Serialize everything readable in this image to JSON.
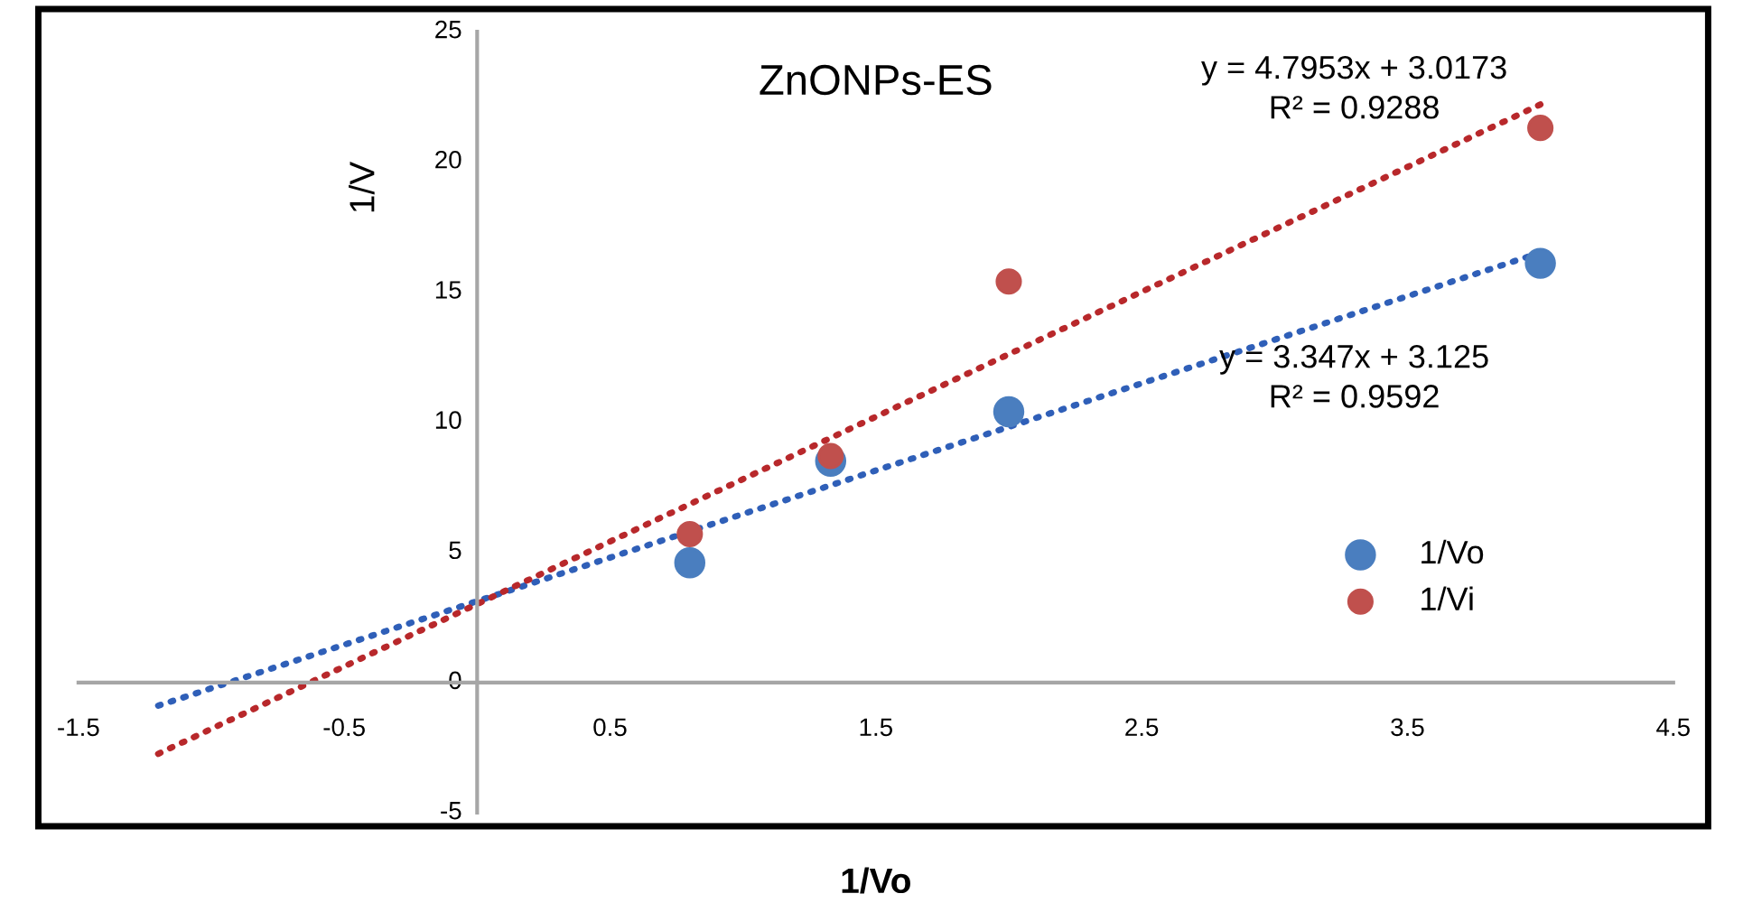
{
  "chart_data": {
    "type": "scatter",
    "title": "ZnONPs-ES",
    "xlabel": "1/Vo",
    "ylabel": "1/V",
    "series": [
      {
        "name": "1/Vo",
        "color": "#4a7ebf",
        "marker": "circle",
        "x": [
          0.8,
          1.33,
          2,
          4
        ],
        "values": [
          4.6,
          8.5,
          10.4,
          16.1
        ]
      },
      {
        "name": "1/Vi",
        "color": "#c0504d",
        "marker": "circle",
        "x": [
          0.8,
          1.33,
          2,
          4
        ],
        "values": [
          5.7,
          8.7,
          15.4,
          21.3
        ]
      },
      {
        "type": "line",
        "color": "#2f5fb8",
        "line_style": "dotted",
        "marker": "none",
        "x": [
          -1.2,
          4
        ],
        "values": [
          -0.89,
          16.51
        ]
      },
      {
        "type": "line",
        "color": "#b8282b",
        "line_style": "dotted",
        "marker": "none",
        "x": [
          -1.2,
          4
        ],
        "values": [
          -2.74,
          22.2
        ]
      }
    ],
    "annotations": [
      "y = 4.7953x + 3.0173\nR² = 0.9288",
      "y = 3.347x + 3.125\nR² = 0.9592"
    ],
    "xlim": [
      -1.5,
      4.5
    ],
    "ylim": [
      -5,
      25
    ],
    "xticks": [
      -1.5,
      -0.5,
      0.5,
      1.5,
      2.5,
      3.5,
      4.5
    ],
    "yticks": [
      -5,
      0,
      5,
      10,
      15,
      20,
      25
    ],
    "grid": false,
    "legend": "right"
  }
}
